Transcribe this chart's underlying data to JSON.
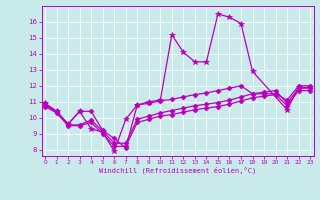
{
  "xlabel": "Windchill (Refroidissement éolien,°C)",
  "background_color": "#c8eaea",
  "line_color": "#bb00bb",
  "x_ticks": [
    0,
    1,
    2,
    3,
    4,
    5,
    6,
    7,
    8,
    9,
    10,
    11,
    12,
    13,
    14,
    15,
    16,
    17,
    18,
    19,
    20,
    21,
    22,
    23
  ],
  "y_ticks": [
    8,
    9,
    10,
    11,
    12,
    13,
    14,
    15,
    16
  ],
  "ylim": [
    7.6,
    17.0
  ],
  "xlim": [
    -0.3,
    23.3
  ],
  "series": [
    {
      "x": [
        0,
        1,
        2,
        3,
        4,
        5,
        6,
        7,
        8,
        9,
        10,
        11,
        12,
        13,
        14,
        15,
        16,
        17,
        18,
        21,
        22,
        23
      ],
      "y": [
        10.9,
        10.4,
        9.6,
        10.4,
        9.3,
        9.1,
        7.9,
        9.9,
        10.8,
        11.0,
        11.1,
        15.2,
        14.1,
        13.5,
        13.5,
        16.5,
        16.3,
        15.9,
        12.9,
        10.5,
        11.9,
        11.9
      ],
      "marker": "*",
      "markersize": 4,
      "linewidth": 0.9
    },
    {
      "x": [
        0,
        1,
        2,
        3,
        4,
        5,
        6,
        7,
        8,
        9,
        10,
        11,
        12,
        13,
        14,
        15,
        16,
        17,
        18,
        19,
        20,
        21,
        22,
        23
      ],
      "y": [
        10.9,
        10.4,
        9.6,
        10.4,
        10.4,
        9.2,
        8.7,
        8.1,
        10.8,
        10.9,
        11.05,
        11.15,
        11.3,
        11.45,
        11.55,
        11.7,
        11.85,
        12.0,
        11.5,
        11.5,
        11.5,
        11.1,
        12.0,
        12.0
      ],
      "marker": "D",
      "markersize": 2.5,
      "linewidth": 0.9
    },
    {
      "x": [
        0,
        1,
        2,
        3,
        4,
        5,
        6,
        7,
        8,
        9,
        10,
        11,
        12,
        13,
        14,
        15,
        16,
        17,
        18,
        19,
        20,
        21,
        22,
        23
      ],
      "y": [
        10.8,
        10.35,
        9.55,
        9.55,
        9.85,
        9.15,
        8.4,
        8.4,
        9.9,
        10.1,
        10.3,
        10.45,
        10.6,
        10.75,
        10.85,
        10.95,
        11.1,
        11.3,
        11.5,
        11.6,
        11.7,
        10.9,
        11.85,
        11.85
      ],
      "marker": "D",
      "markersize": 2.5,
      "linewidth": 0.9
    },
    {
      "x": [
        0,
        1,
        2,
        3,
        4,
        5,
        6,
        7,
        8,
        9,
        10,
        11,
        12,
        13,
        14,
        15,
        16,
        17,
        18,
        19,
        20,
        21,
        22,
        23
      ],
      "y": [
        10.7,
        10.3,
        9.5,
        9.5,
        9.7,
        9.0,
        8.2,
        8.2,
        9.7,
        9.9,
        10.1,
        10.2,
        10.35,
        10.5,
        10.6,
        10.7,
        10.85,
        11.05,
        11.25,
        11.35,
        11.45,
        10.75,
        11.7,
        11.7
      ],
      "marker": "D",
      "markersize": 2.5,
      "linewidth": 0.9
    }
  ]
}
